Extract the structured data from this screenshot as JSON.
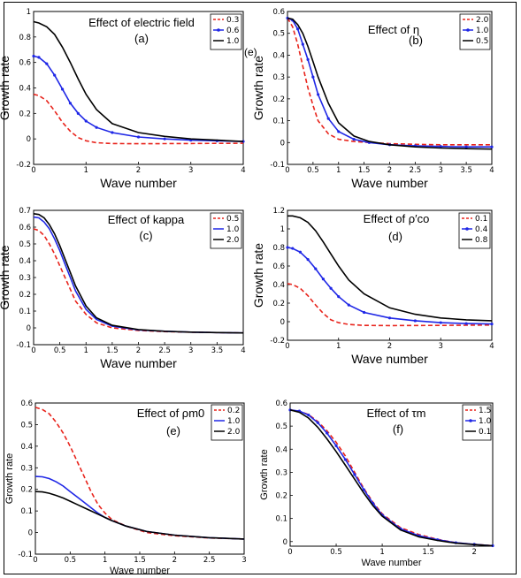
{
  "stray_label": "(e)",
  "chart_data": [
    {
      "type": "line",
      "id": "a",
      "title": "Effect of electric field",
      "subtitle": "(a)",
      "xlabel": "Wave number",
      "ylabel": "Growth rate",
      "xlim": [
        0,
        4
      ],
      "ylim": [
        -0.2,
        1
      ],
      "xticks": [
        "0",
        "1",
        "2",
        "3",
        "4"
      ],
      "yticks": [
        "-0.2",
        "0",
        "0.2",
        "0.4",
        "0.6",
        "0.8",
        "1"
      ],
      "legend_position": "top-right",
      "series": [
        {
          "name": "0.3",
          "color": "#e8241c",
          "style": "dashed",
          "x": [
            0,
            0.1,
            0.25,
            0.4,
            0.55,
            0.7,
            0.85,
            1.0,
            1.2,
            1.5,
            2.0,
            2.5,
            3.0,
            3.5,
            4.0
          ],
          "y": [
            0.35,
            0.34,
            0.3,
            0.22,
            0.13,
            0.06,
            0.01,
            -0.015,
            -0.03,
            -0.036,
            -0.038,
            -0.037,
            -0.036,
            -0.035,
            -0.034
          ]
        },
        {
          "name": "0.6",
          "color": "#1f27e6",
          "style": "marker",
          "x": [
            0,
            0.1,
            0.25,
            0.4,
            0.55,
            0.7,
            0.85,
            1.0,
            1.2,
            1.5,
            2.0,
            2.5,
            3.0,
            3.5,
            4.0
          ],
          "y": [
            0.65,
            0.64,
            0.59,
            0.5,
            0.39,
            0.28,
            0.2,
            0.14,
            0.09,
            0.05,
            0.015,
            0.0,
            -0.01,
            -0.015,
            -0.02
          ]
        },
        {
          "name": "1.0",
          "color": "#000000",
          "style": "solid",
          "x": [
            0,
            0.1,
            0.25,
            0.4,
            0.55,
            0.7,
            0.85,
            1.0,
            1.2,
            1.5,
            2.0,
            2.5,
            3.0,
            3.5,
            4.0
          ],
          "y": [
            0.92,
            0.91,
            0.88,
            0.82,
            0.72,
            0.6,
            0.47,
            0.35,
            0.23,
            0.12,
            0.05,
            0.02,
            0.0,
            -0.01,
            -0.02
          ]
        }
      ]
    },
    {
      "type": "line",
      "id": "b",
      "title": "Effect of η",
      "subtitle": "(b)",
      "xlabel": "Wave number",
      "ylabel": "Growth rate",
      "xlim": [
        0,
        4
      ],
      "ylim": [
        -0.1,
        0.6
      ],
      "xticks": [
        "0",
        "0.5",
        "1",
        "1.5",
        "2",
        "2.5",
        "3",
        "3.5",
        "4"
      ],
      "yticks": [
        "-0.1",
        "0",
        "0.1",
        "0.2",
        "0.3",
        "0.4",
        "0.5",
        "0.6"
      ],
      "legend_position": "top-right",
      "series": [
        {
          "name": "2.0",
          "color": "#e8241c",
          "style": "dashed",
          "x": [
            0,
            0.1,
            0.2,
            0.3,
            0.4,
            0.5,
            0.6,
            0.8,
            1.0,
            1.3,
            1.6,
            2.0,
            2.5,
            3.0,
            3.5,
            4.0
          ],
          "y": [
            0.57,
            0.53,
            0.45,
            0.35,
            0.25,
            0.17,
            0.1,
            0.04,
            0.015,
            0.005,
            0.0,
            -0.005,
            -0.008,
            -0.01,
            -0.01,
            -0.01
          ]
        },
        {
          "name": "1.0",
          "color": "#1f27e6",
          "style": "marker",
          "x": [
            0,
            0.1,
            0.2,
            0.3,
            0.4,
            0.5,
            0.6,
            0.8,
            1.0,
            1.3,
            1.6,
            2.0,
            2.5,
            3.0,
            3.5,
            4.0
          ],
          "y": [
            0.57,
            0.56,
            0.52,
            0.45,
            0.38,
            0.3,
            0.22,
            0.11,
            0.05,
            0.015,
            0.0,
            -0.01,
            -0.015,
            -0.018,
            -0.02,
            -0.02
          ]
        },
        {
          "name": "0.5",
          "color": "#000000",
          "style": "solid",
          "x": [
            0,
            0.1,
            0.2,
            0.3,
            0.4,
            0.5,
            0.6,
            0.8,
            1.0,
            1.3,
            1.6,
            2.0,
            2.5,
            3.0,
            3.5,
            4.0
          ],
          "y": [
            0.57,
            0.565,
            0.54,
            0.5,
            0.44,
            0.37,
            0.3,
            0.18,
            0.09,
            0.03,
            0.005,
            -0.01,
            -0.02,
            -0.025,
            -0.028,
            -0.03
          ]
        }
      ]
    },
    {
      "type": "line",
      "id": "c",
      "title": "Effect of kappa",
      "subtitle": "(c)",
      "xlabel": "Wave number",
      "ylabel": "Growth rate",
      "xlim": [
        0,
        4
      ],
      "ylim": [
        -0.1,
        0.7
      ],
      "xticks": [
        "0",
        "0.5",
        "1",
        "1.5",
        "2",
        "2.5",
        "3",
        "3.5",
        "4"
      ],
      "yticks": [
        "-0.1",
        "0",
        "0.1",
        "0.2",
        "0.3",
        "0.4",
        "0.5",
        "0.6",
        "0.7"
      ],
      "legend_position": "top-right",
      "series": [
        {
          "name": "0.5",
          "color": "#e8241c",
          "style": "dashed",
          "x": [
            0,
            0.1,
            0.2,
            0.3,
            0.4,
            0.5,
            0.6,
            0.7,
            0.8,
            1.0,
            1.2,
            1.5,
            2.0,
            2.5,
            3.0,
            3.5,
            4.0
          ],
          "y": [
            0.59,
            0.58,
            0.55,
            0.5,
            0.44,
            0.37,
            0.3,
            0.23,
            0.16,
            0.08,
            0.03,
            0.0,
            -0.015,
            -0.022,
            -0.026,
            -0.028,
            -0.03
          ]
        },
        {
          "name": "1.0",
          "color": "#1f27e6",
          "style": "solid",
          "x": [
            0,
            0.1,
            0.2,
            0.3,
            0.4,
            0.5,
            0.6,
            0.7,
            0.8,
            1.0,
            1.2,
            1.5,
            2.0,
            2.5,
            3.0,
            3.5,
            4.0
          ],
          "y": [
            0.66,
            0.655,
            0.63,
            0.59,
            0.53,
            0.46,
            0.38,
            0.3,
            0.22,
            0.11,
            0.05,
            0.01,
            -0.012,
            -0.02,
            -0.025,
            -0.028,
            -0.03
          ]
        },
        {
          "name": "2.0",
          "color": "#000000",
          "style": "solid",
          "x": [
            0,
            0.1,
            0.2,
            0.3,
            0.4,
            0.5,
            0.6,
            0.7,
            0.8,
            1.0,
            1.2,
            1.5,
            2.0,
            2.5,
            3.0,
            3.5,
            4.0
          ],
          "y": [
            0.68,
            0.675,
            0.655,
            0.615,
            0.56,
            0.49,
            0.41,
            0.33,
            0.25,
            0.13,
            0.06,
            0.015,
            -0.01,
            -0.02,
            -0.025,
            -0.028,
            -0.03
          ]
        }
      ]
    },
    {
      "type": "line",
      "id": "d",
      "title": "Effect of ρ′co",
      "subtitle": "(d)",
      "xlabel": "Wave number",
      "ylabel": "Growth rate",
      "xlim": [
        0,
        4
      ],
      "ylim": [
        -0.2,
        1.2
      ],
      "xticks": [
        "0",
        "1",
        "2",
        "3",
        "4"
      ],
      "yticks": [
        "-0.2",
        "0",
        "0.2",
        "0.4",
        "0.6",
        "0.8",
        "1",
        "1.2"
      ],
      "legend_position": "top-right",
      "series": [
        {
          "name": "0.1",
          "color": "#e8241c",
          "style": "dashed",
          "x": [
            0,
            0.1,
            0.25,
            0.4,
            0.55,
            0.7,
            0.85,
            1.0,
            1.2,
            1.5,
            2.0,
            2.5,
            3.0,
            3.5,
            4.0
          ],
          "y": [
            0.41,
            0.4,
            0.36,
            0.28,
            0.18,
            0.09,
            0.02,
            -0.01,
            -0.03,
            -0.04,
            -0.042,
            -0.041,
            -0.04,
            -0.038,
            -0.036
          ]
        },
        {
          "name": "0.4",
          "color": "#1f27e6",
          "style": "marker",
          "x": [
            0,
            0.1,
            0.25,
            0.4,
            0.55,
            0.7,
            0.85,
            1.0,
            1.2,
            1.5,
            2.0,
            2.5,
            3.0,
            3.5,
            4.0
          ],
          "y": [
            0.8,
            0.79,
            0.75,
            0.67,
            0.57,
            0.46,
            0.36,
            0.27,
            0.18,
            0.1,
            0.04,
            0.01,
            -0.01,
            -0.02,
            -0.025
          ]
        },
        {
          "name": "0.8",
          "color": "#000000",
          "style": "solid",
          "x": [
            0,
            0.1,
            0.25,
            0.4,
            0.55,
            0.7,
            0.85,
            1.0,
            1.2,
            1.5,
            2.0,
            2.5,
            3.0,
            3.5,
            4.0
          ],
          "y": [
            1.14,
            1.14,
            1.12,
            1.07,
            0.98,
            0.86,
            0.73,
            0.6,
            0.45,
            0.3,
            0.15,
            0.08,
            0.04,
            0.02,
            0.01
          ]
        }
      ]
    },
    {
      "type": "line",
      "id": "e",
      "title": "Effect of ρm0",
      "subtitle": "(e)",
      "xlabel": "Wave number",
      "ylabel": "Growth rate",
      "xlim": [
        0,
        3
      ],
      "ylim": [
        -0.1,
        0.6
      ],
      "xticks": [
        "0",
        "0.5",
        "1",
        "1.5",
        "2",
        "2.5",
        "3"
      ],
      "yticks": [
        "-0.1",
        "0",
        "0.1",
        "0.2",
        "0.3",
        "0.4",
        "0.5",
        "0.6"
      ],
      "legend_position": "top-right",
      "series": [
        {
          "name": "0.2",
          "color": "#e8241c",
          "style": "dashed",
          "x": [
            0,
            0.1,
            0.2,
            0.3,
            0.4,
            0.5,
            0.6,
            0.7,
            0.8,
            0.9,
            1.0,
            1.1,
            1.3,
            1.6,
            2.0,
            2.5,
            3.0
          ],
          "y": [
            0.58,
            0.57,
            0.55,
            0.51,
            0.46,
            0.4,
            0.33,
            0.26,
            0.19,
            0.13,
            0.09,
            0.06,
            0.03,
            0.0,
            -0.015,
            -0.025,
            -0.03
          ]
        },
        {
          "name": "1.0",
          "color": "#1f27e6",
          "style": "solid",
          "x": [
            0,
            0.1,
            0.2,
            0.3,
            0.4,
            0.5,
            0.6,
            0.7,
            0.8,
            0.9,
            1.0,
            1.1,
            1.3,
            1.6,
            2.0,
            2.5,
            3.0
          ],
          "y": [
            0.26,
            0.258,
            0.25,
            0.235,
            0.215,
            0.19,
            0.165,
            0.14,
            0.115,
            0.09,
            0.07,
            0.055,
            0.03,
            0.005,
            -0.012,
            -0.024,
            -0.03
          ]
        },
        {
          "name": "2.0",
          "color": "#000000",
          "style": "solid",
          "x": [
            0,
            0.1,
            0.2,
            0.3,
            0.4,
            0.5,
            0.6,
            0.7,
            0.8,
            0.9,
            1.0,
            1.1,
            1.3,
            1.6,
            2.0,
            2.5,
            3.0
          ],
          "y": [
            0.19,
            0.188,
            0.182,
            0.172,
            0.16,
            0.145,
            0.13,
            0.115,
            0.1,
            0.085,
            0.07,
            0.055,
            0.03,
            0.005,
            -0.012,
            -0.024,
            -0.03
          ]
        }
      ]
    },
    {
      "type": "line",
      "id": "f",
      "title": "Effect of τm",
      "subtitle": "(f)",
      "xlabel": "Wave number",
      "ylabel": "Growth rate",
      "xlim": [
        0,
        2.2
      ],
      "ylim": [
        -0.02,
        0.6
      ],
      "xticks": [
        "0",
        "0.5",
        "1",
        "1.5",
        "2"
      ],
      "yticks": [
        "0",
        "0.1",
        "0.2",
        "0.3",
        "0.4",
        "0.5",
        "0.6"
      ],
      "legend_position": "top-right",
      "series": [
        {
          "name": "1.5",
          "color": "#e8241c",
          "style": "dashed",
          "x": [
            0,
            0.1,
            0.2,
            0.3,
            0.4,
            0.5,
            0.6,
            0.7,
            0.8,
            0.9,
            1.0,
            1.2,
            1.4,
            1.6,
            1.8,
            2.0,
            2.2
          ],
          "y": [
            0.57,
            0.565,
            0.55,
            0.52,
            0.48,
            0.43,
            0.37,
            0.3,
            0.23,
            0.17,
            0.12,
            0.06,
            0.03,
            0.01,
            -0.005,
            -0.012,
            -0.018
          ]
        },
        {
          "name": "1.0",
          "color": "#1f27e6",
          "style": "marker",
          "x": [
            0,
            0.1,
            0.2,
            0.3,
            0.4,
            0.5,
            0.6,
            0.7,
            0.8,
            0.9,
            1.0,
            1.2,
            1.4,
            1.6,
            1.8,
            2.0,
            2.2
          ],
          "y": [
            0.57,
            0.565,
            0.548,
            0.515,
            0.47,
            0.415,
            0.355,
            0.29,
            0.225,
            0.165,
            0.115,
            0.055,
            0.025,
            0.008,
            -0.005,
            -0.012,
            -0.018
          ]
        },
        {
          "name": "0.1",
          "color": "#000000",
          "style": "solid",
          "x": [
            0,
            0.1,
            0.2,
            0.3,
            0.4,
            0.5,
            0.6,
            0.7,
            0.8,
            0.9,
            1.0,
            1.2,
            1.4,
            1.6,
            1.8,
            2.0,
            2.2
          ],
          "y": [
            0.57,
            0.56,
            0.535,
            0.495,
            0.445,
            0.39,
            0.33,
            0.27,
            0.21,
            0.155,
            0.11,
            0.05,
            0.02,
            0.005,
            -0.007,
            -0.013,
            -0.018
          ]
        }
      ]
    }
  ]
}
